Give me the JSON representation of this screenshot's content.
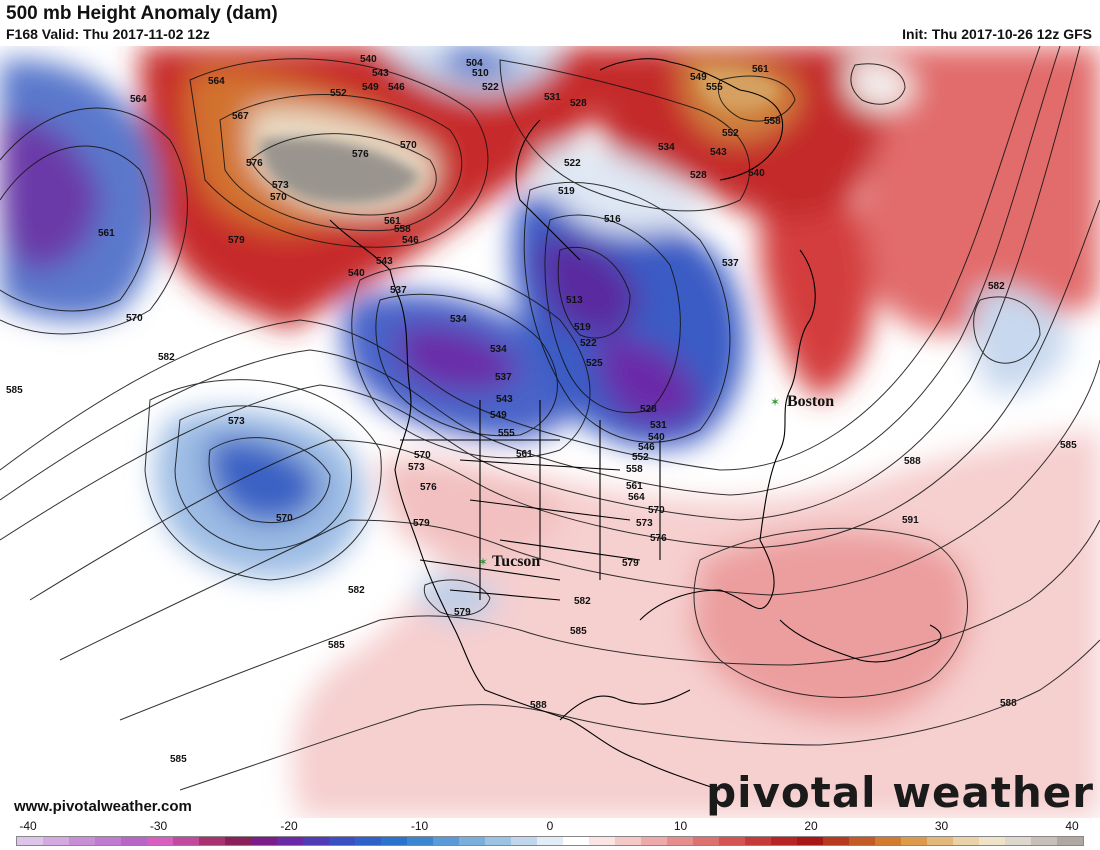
{
  "header": {
    "title": "500 mb Height Anomaly (dam)",
    "valid": "F168 Valid: Thu 2017-11-02 12z",
    "init": "Init: Thu 2017-10-26 12z GFS"
  },
  "footer": {
    "website": "www.pivotalweather.com",
    "logo": "pivotal weather"
  },
  "colorbar": {
    "ticks": [
      "-40",
      "-30",
      "-20",
      "-10",
      "0",
      "10",
      "20",
      "30",
      "40"
    ],
    "colors": [
      "#dcc4ea",
      "#d4a8e0",
      "#c98fd6",
      "#c07bd0",
      "#b865c8",
      "#d85fbf",
      "#c24a9e",
      "#a8326f",
      "#8a1f5a",
      "#7a1d8a",
      "#6a2aa8",
      "#4f3bb6",
      "#3a4fc4",
      "#2e62c8",
      "#2a73cc",
      "#3a86d2",
      "#5a9ad8",
      "#7aaedd",
      "#9cc2e4",
      "#c0d6ec",
      "#e2ecf6",
      "#ffffff",
      "#fbe4e4",
      "#f5c8c8",
      "#eeaaaa",
      "#e68e8e",
      "#de7070",
      "#d45454",
      "#c73a3a",
      "#b82424",
      "#a81616",
      "#b53a1e",
      "#c45a24",
      "#d27a2e",
      "#dc9a4a",
      "#e4b878",
      "#ead2a8",
      "#eee2c8",
      "#dcd6cc",
      "#c8c0b8",
      "#b0a8a0"
    ]
  },
  "cities": [
    {
      "name": "Boston"
    },
    {
      "name": "Tucson"
    }
  ],
  "contour_labels": [
    "564",
    "567",
    "570",
    "573",
    "576",
    "579",
    "582",
    "585",
    "588",
    "591",
    "561",
    "558",
    "555",
    "552",
    "549",
    "546",
    "543",
    "540",
    "537",
    "534",
    "531",
    "528",
    "525",
    "522",
    "519",
    "516",
    "513",
    "510",
    "504"
  ]
}
